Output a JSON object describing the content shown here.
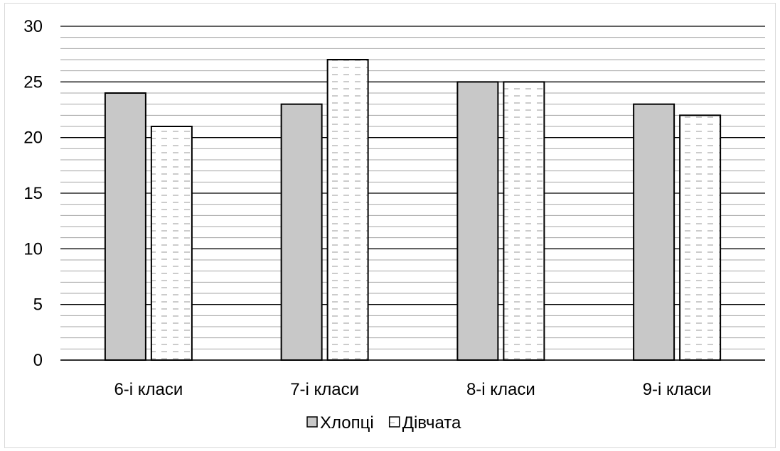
{
  "chart_data": {
    "type": "bar",
    "categories": [
      "6-і класи",
      "7-і класи",
      "8-і класи",
      "9-і класи"
    ],
    "series": [
      {
        "name": "Хлопці",
        "values": [
          24,
          23,
          25,
          23
        ],
        "fill": "#c8c8c8",
        "pattern": "solid"
      },
      {
        "name": "Дівчата",
        "values": [
          21,
          27,
          25,
          22
        ],
        "fill": "#ffffff",
        "pattern": "dashes"
      }
    ],
    "ylim": [
      0,
      30
    ],
    "y_ticks": [
      "0",
      "5",
      "10",
      "15",
      "20",
      "25",
      "30"
    ],
    "grid": true,
    "legend_position": "bottom",
    "colors": {
      "axis": "#000000",
      "major_grid": "#000000",
      "minor_grid": "#a6a6a6",
      "bar_outline": "#000000"
    }
  }
}
